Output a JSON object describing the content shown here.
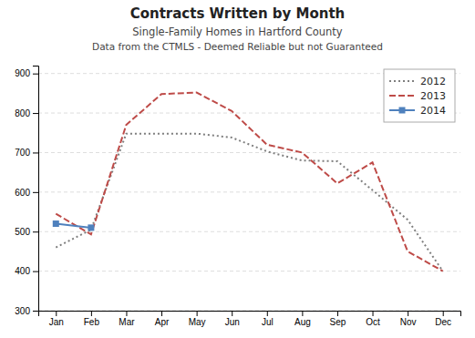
{
  "chart_data": {
    "type": "line",
    "title": "Contracts Written by Month",
    "subtitle": [
      "Single-Family Homes in Hartford County",
      "Data from the CTMLS - Deemed Reliable but not Guaranteed"
    ],
    "categories": [
      "Jan",
      "Feb",
      "Mar",
      "Apr",
      "May",
      "Jun",
      "Jul",
      "Aug",
      "Sep",
      "Oct",
      "Nov",
      "Dec"
    ],
    "series": [
      {
        "name": "2012",
        "color": "#7f7f7f",
        "line_style": "dotted",
        "values": [
          460,
          505,
          748,
          748,
          748,
          738,
          703,
          680,
          678,
          605,
          530,
          400
        ]
      },
      {
        "name": "2013",
        "color": "#be4b48",
        "line_style": "dashed",
        "values": [
          545,
          493,
          770,
          848,
          852,
          805,
          720,
          700,
          622,
          675,
          450,
          400
        ]
      },
      {
        "name": "2014",
        "color": "#4f81bd",
        "line_style": "solid",
        "marker": "square",
        "values": [
          520,
          510,
          null,
          null,
          null,
          null,
          null,
          null,
          null,
          null,
          null,
          null
        ]
      }
    ],
    "ylim": [
      300,
      920
    ],
    "yticks": [
      300,
      400,
      500,
      600,
      700,
      800,
      900
    ],
    "grid": true,
    "legend": "top-right"
  }
}
